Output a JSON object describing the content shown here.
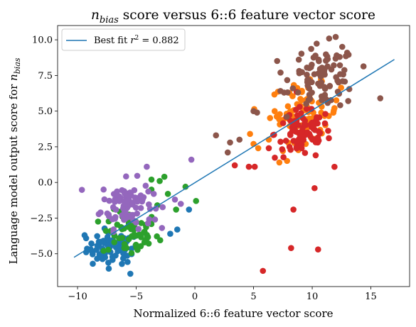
{
  "chart_data": {
    "type": "scatter",
    "title": {
      "main": "n",
      "sub": "bias",
      "rest": " score versus 6::6 feature vector score"
    },
    "xlabel": "Normalized 6::6 feature vector score",
    "ylabel": {
      "main": "Language model output score for ",
      "math": "n",
      "sub": "bias"
    },
    "xlim": [
      -11.7,
      18.3
    ],
    "ylim": [
      -7.3,
      11.0
    ],
    "xticks": [
      -10,
      -5,
      0,
      5,
      10,
      15
    ],
    "yticks": [
      -5.0,
      -2.5,
      0.0,
      2.5,
      5.0,
      7.5,
      10.0
    ],
    "xtick_labels": [
      "−10",
      "−5",
      "0",
      "5",
      "10",
      "15"
    ],
    "ytick_labels": [
      "−5.0",
      "−2.5",
      "0.0",
      "2.5",
      "5.0",
      "7.5",
      "10.0"
    ],
    "legend": {
      "label": "Best fit ",
      "r2_label": "r",
      "r2_sup": "2",
      "r2_value": " = 0.882",
      "position": "upper left"
    },
    "fit_line": {
      "x": [
        -10.3,
        17.0
      ],
      "y": [
        -5.25,
        8.62
      ],
      "color": "#1f77b4"
    },
    "clusters": [
      {
        "color": "#1f77b4",
        "cx": -7.0,
        "cy": -4.6,
        "sx": 1.1,
        "sy": 0.55,
        "n": 75,
        "extra": [
          [
            -9.4,
            -3.7
          ],
          [
            -8.7,
            -5.7
          ],
          [
            -5.5,
            -6.4
          ],
          [
            -2.1,
            -3.6
          ],
          [
            -1.5,
            -3.3
          ],
          [
            -0.5,
            -1.9
          ]
        ]
      },
      {
        "color": "#2ca02c",
        "cx": -5.5,
        "cy": -3.6,
        "sx": 1.2,
        "sy": 0.8,
        "n": 60,
        "extra": [
          [
            -3.7,
            0.2
          ],
          [
            -3.0,
            0.1
          ],
          [
            -2.6,
            0.4
          ],
          [
            -2.3,
            -0.8
          ],
          [
            -1.6,
            -1.9
          ],
          [
            -0.8,
            -0.3
          ],
          [
            0.1,
            -1.3
          ],
          [
            -3.7,
            -0.5
          ],
          [
            -3.2,
            -1.6
          ]
        ]
      },
      {
        "color": "#9467bd",
        "cx": -5.8,
        "cy": -1.5,
        "sx": 1.1,
        "sy": 0.85,
        "n": 95,
        "extra": [
          [
            -4.1,
            1.1
          ],
          [
            -1.7,
            -1.2
          ],
          [
            -1.2,
            -1.5
          ],
          [
            -3.4,
            -2.6
          ],
          [
            -0.3,
            1.6
          ]
        ]
      },
      {
        "color": "#ff7f0e",
        "cx": 9.4,
        "cy": 4.9,
        "sx": 1.5,
        "sy": 1.0,
        "n": 80,
        "extra": [
          [
            4.7,
            3.4
          ],
          [
            5.0,
            2.7
          ],
          [
            5.4,
            2.4
          ],
          [
            7.2,
            1.4
          ],
          [
            6.8,
            5.0
          ],
          [
            6.3,
            3.0
          ],
          [
            7.5,
            2.2
          ]
        ]
      },
      {
        "color": "#d62728",
        "cx": 9.2,
        "cy": 3.4,
        "sx": 1.2,
        "sy": 0.9,
        "n": 90,
        "extra": [
          [
            3.4,
            1.2
          ],
          [
            4.6,
            1.1
          ],
          [
            5.1,
            1.1
          ],
          [
            6.3,
            2.4
          ],
          [
            10.2,
            -0.4
          ],
          [
            8.4,
            -1.9
          ],
          [
            10.5,
            -4.7
          ],
          [
            8.2,
            -4.6
          ],
          [
            5.8,
            -6.2
          ]
        ]
      },
      {
        "color": "#8c564b",
        "cx": 11.0,
        "cy": 7.4,
        "sx": 1.4,
        "sy": 1.1,
        "n": 90,
        "extra": [
          [
            1.8,
            3.3
          ],
          [
            2.8,
            2.1
          ],
          [
            3.0,
            2.8
          ],
          [
            3.8,
            3.0
          ],
          [
            5.0,
            5.0
          ],
          [
            5.3,
            4.9
          ],
          [
            7.3,
            7.7
          ],
          [
            7.6,
            6.3
          ],
          [
            15.8,
            5.9
          ],
          [
            12.0,
            10.2
          ]
        ]
      }
    ]
  }
}
